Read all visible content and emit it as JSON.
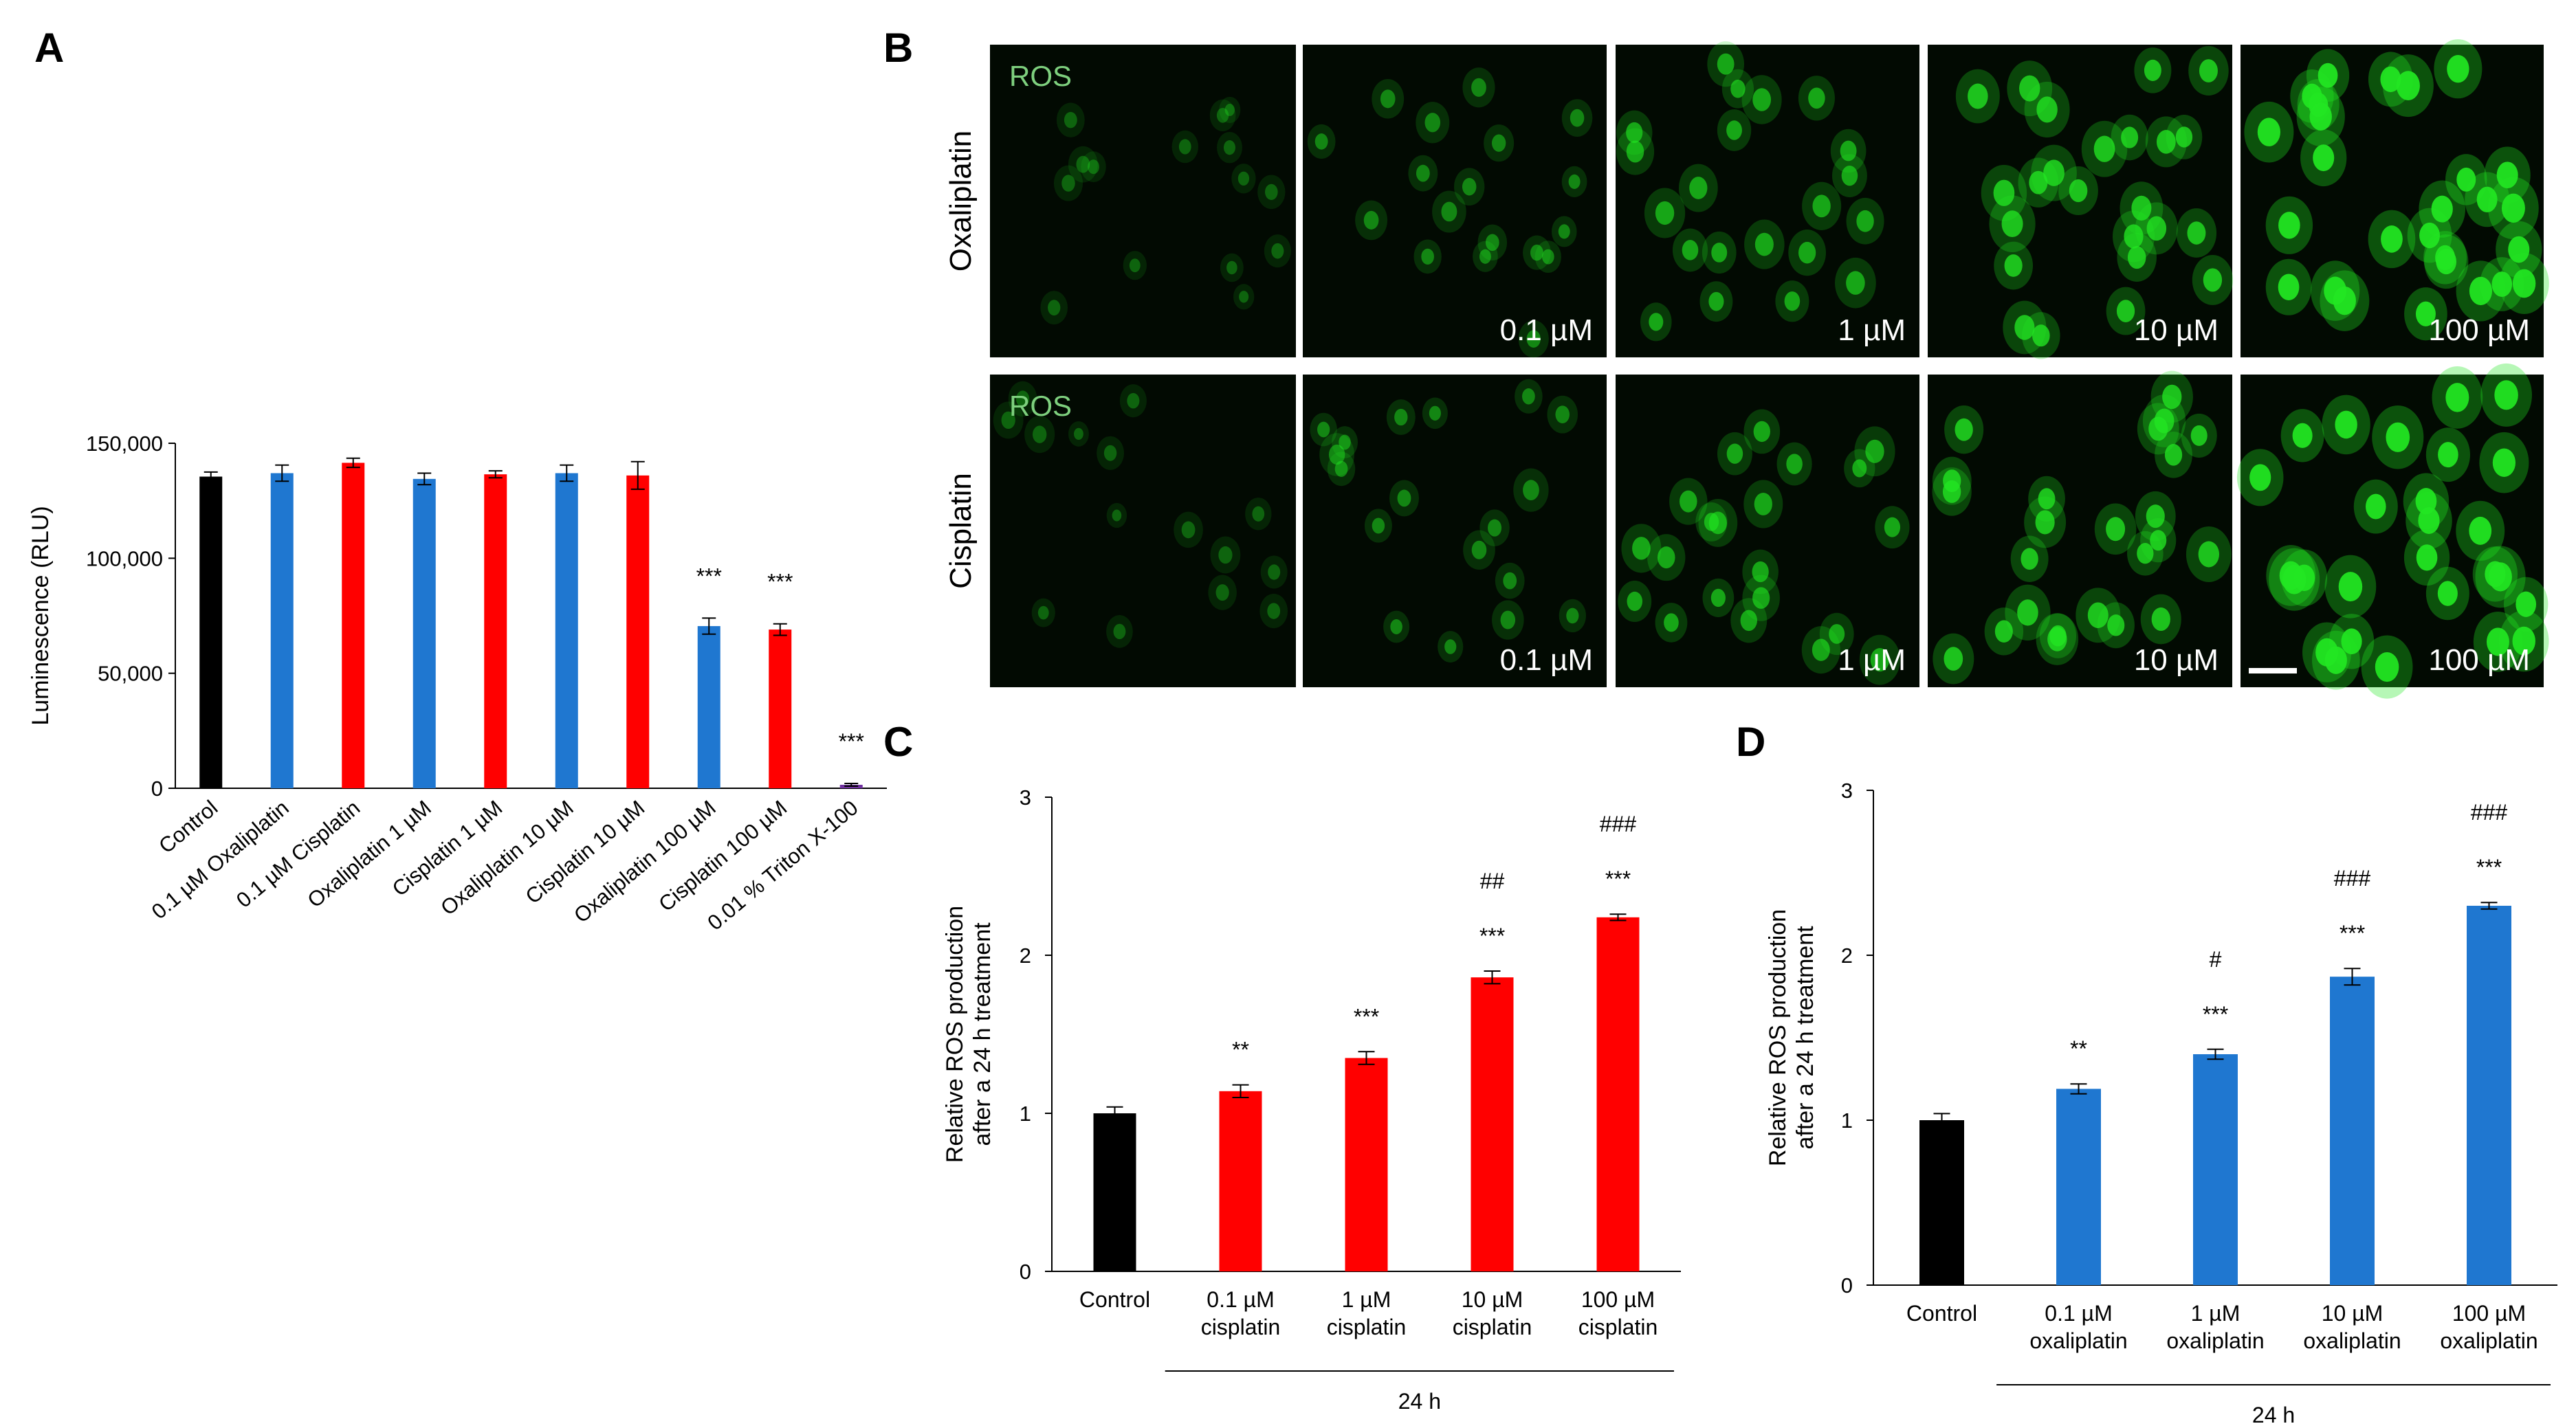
{
  "panels": {
    "a_letter": "A",
    "b_letter": "B",
    "c_letter": "C",
    "d_letter": "D"
  },
  "colors": {
    "black": "#000000",
    "red": "#ff0000",
    "blue": "#1f77d0",
    "purple": "#7030a0",
    "micro_bg": "#020a02",
    "cell_green": "#22e622",
    "label_green": "#7ed07e"
  },
  "micrographs": {
    "row_labels": [
      "Oxaliplatin",
      "Cisplatin"
    ],
    "stain_label": "ROS",
    "concentration_labels": [
      "",
      "0.1 µM",
      "1 µM",
      "10 µM",
      "100 µM"
    ],
    "cell_density_level": [
      1,
      2,
      3,
      4,
      5
    ]
  },
  "chart_data": [
    {
      "id": "A",
      "type": "bar",
      "categories": [
        "Control",
        "0.1 µM Oxaliplatin",
        "0.1 µM Cisplatin",
        "Oxaliplatin 1 µM",
        "Cisplatin 1 µM",
        "Oxaliplatin 10 µM",
        "Cisplatin 10 µM",
        "Oxaliplatin 100 µM",
        "Cisplatin 100 µM",
        "0.01 % Triton X-100"
      ],
      "values": [
        135500,
        137000,
        141500,
        134500,
        136500,
        137000,
        136000,
        70500,
        69000,
        1500
      ],
      "errors": [
        2000,
        3500,
        2000,
        2500,
        1500,
        3500,
        6000,
        3500,
        2500,
        600
      ],
      "bar_colors": [
        "#000000",
        "#1f77d0",
        "#ff0000",
        "#1f77d0",
        "#ff0000",
        "#1f77d0",
        "#ff0000",
        "#1f77d0",
        "#ff0000",
        "#7030a0"
      ],
      "annotations": [
        "",
        "",
        "",
        "",
        "",
        "",
        "",
        "***",
        "***",
        "***"
      ],
      "ylabel": "Luminescence (RLU)",
      "ylim": [
        0,
        150000
      ],
      "yticks": [
        "0",
        "50,000",
        "100,000",
        "150,000"
      ]
    },
    {
      "id": "C",
      "type": "bar",
      "categories": [
        [
          "Control"
        ],
        [
          "0.1 µM",
          "cisplatin"
        ],
        [
          "1 µM",
          "cisplatin"
        ],
        [
          "10 µM",
          "cisplatin"
        ],
        [
          "100 µM",
          "cisplatin"
        ]
      ],
      "values": [
        1.0,
        1.14,
        1.35,
        1.86,
        2.24
      ],
      "errors": [
        0.04,
        0.04,
        0.04,
        0.04,
        0.02
      ],
      "bar_colors": [
        "#000000",
        "#ff0000",
        "#ff0000",
        "#ff0000",
        "#ff0000"
      ],
      "annotations": [
        "",
        "**",
        "***",
        "***",
        "***"
      ],
      "annotations2": [
        "",
        "",
        "",
        "##",
        "###"
      ],
      "ylabel": [
        "Relative ROS production",
        "after a 24 h treatment"
      ],
      "ylim": [
        0,
        3
      ],
      "yticks": [
        "0",
        "1",
        "2",
        "3"
      ],
      "group_label": "24 h"
    },
    {
      "id": "D",
      "type": "bar",
      "categories": [
        [
          "Control"
        ],
        [
          "0.1 µM",
          "oxaliplatin"
        ],
        [
          "1 µM",
          "oxaliplatin"
        ],
        [
          "10 µM",
          "oxaliplatin"
        ],
        [
          "100 µM",
          "oxaliplatin"
        ]
      ],
      "values": [
        1.0,
        1.19,
        1.4,
        1.87,
        2.3
      ],
      "errors": [
        0.04,
        0.03,
        0.03,
        0.05,
        0.02
      ],
      "bar_colors": [
        "#000000",
        "#1f77d0",
        "#1f77d0",
        "#1f77d0",
        "#1f77d0"
      ],
      "annotations": [
        "",
        "**",
        "***",
        "***",
        "***"
      ],
      "annotations2": [
        "",
        "",
        "#",
        "###",
        "###"
      ],
      "ylabel": [
        "Relative ROS production",
        "after a 24 h treatment"
      ],
      "ylim": [
        0,
        3
      ],
      "yticks": [
        "0",
        "1",
        "2",
        "3"
      ],
      "group_label": "24 h"
    }
  ]
}
